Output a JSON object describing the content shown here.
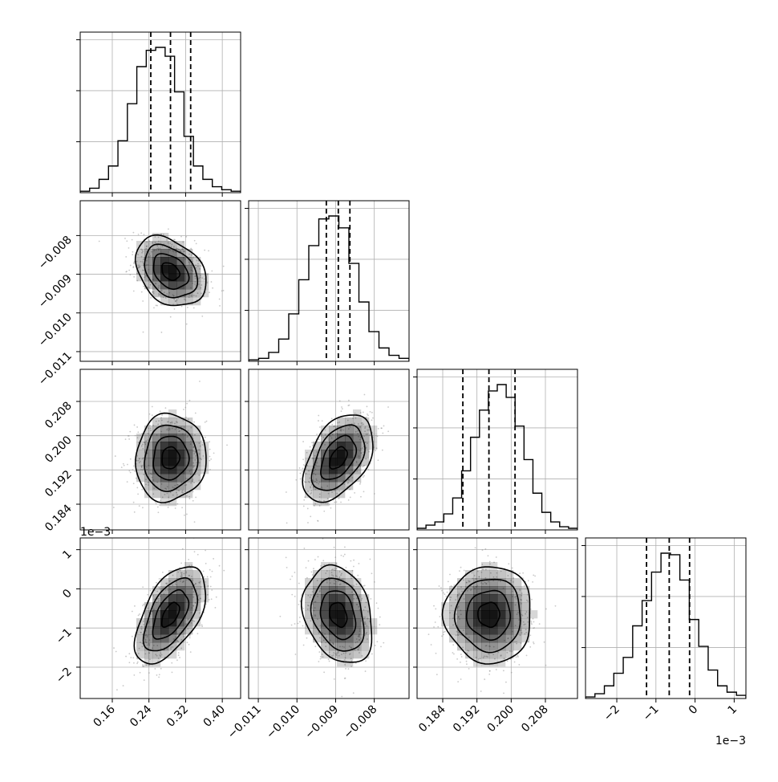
{
  "chart_data": {
    "type": "corner",
    "title": "",
    "n_params": 4,
    "param_ranges": [
      [
        0.09,
        0.44
      ],
      [
        -0.01125,
        -0.0071
      ],
      [
        0.178,
        0.2155
      ],
      [
        -0.0028,
        0.0013
      ]
    ],
    "ticks": [
      {
        "values": [
          0.16,
          0.24,
          0.32,
          0.4
        ],
        "labels": [
          "0.16",
          "0.24",
          "0.32",
          "0.40"
        ]
      },
      {
        "values": [
          -0.011,
          -0.01,
          -0.009,
          -0.008
        ],
        "labels": [
          "−0.011",
          "−0.010",
          "−0.009",
          "−0.008"
        ]
      },
      {
        "values": [
          0.184,
          0.192,
          0.2,
          0.208
        ],
        "labels": [
          "0.184",
          "0.192",
          "0.200",
          "0.208"
        ]
      },
      {
        "values": [
          -0.002,
          -0.001,
          0.0,
          0.001
        ],
        "labels": [
          "−2",
          "−1",
          "0",
          "1"
        ]
      }
    ],
    "offset_labels": {
      "left": "1e−3",
      "bottom": "1e−3"
    },
    "quantiles": [
      [
        0.244,
        0.287,
        0.331
      ],
      [
        -0.00924,
        -0.00893,
        -0.00863
      ],
      [
        0.1887,
        0.1948,
        0.2009
      ],
      [
        -0.00124,
        -0.00066,
        -0.00014
      ]
    ],
    "histograms": [
      {
        "counts": [
          1,
          3,
          9,
          18,
          35,
          60,
          85,
          96,
          98,
          92,
          68,
          38,
          18,
          9,
          4,
          2,
          1
        ]
      },
      {
        "counts": [
          1,
          2,
          6,
          15,
          32,
          55,
          78,
          96,
          98,
          90,
          66,
          40,
          20,
          9,
          4,
          2
        ]
      },
      {
        "counts": [
          1,
          3,
          5,
          10,
          20,
          37,
          58,
          75,
          87,
          91,
          83,
          65,
          44,
          23,
          11,
          5,
          2,
          1
        ]
      },
      {
        "counts": [
          1,
          3,
          8,
          16,
          26,
          46,
          62,
          80,
          92,
          91,
          75,
          50,
          33,
          18,
          8,
          4,
          2
        ]
      }
    ],
    "means": [
      0.287,
      -0.00893,
      0.1948,
      -0.00066
    ],
    "std": [
      0.0385,
      0.00045,
      0.0051,
      0.00062
    ],
    "correlations": [
      [
        1,
        -0.32,
        0.05,
        0.55
      ],
      [
        -0.32,
        1,
        0.45,
        -0.25
      ],
      [
        0.05,
        0.45,
        1,
        0.0
      ],
      [
        0.55,
        -0.25,
        0.0,
        1
      ]
    ],
    "contour_levels_sigma": [
      0.5,
      1.0,
      1.5,
      2.0
    ],
    "grid": true,
    "colors": {
      "axes": "#000000",
      "grid": "#b0b0b0",
      "contour": "#000000",
      "scatter": "#888888",
      "density": "#000000"
    }
  }
}
